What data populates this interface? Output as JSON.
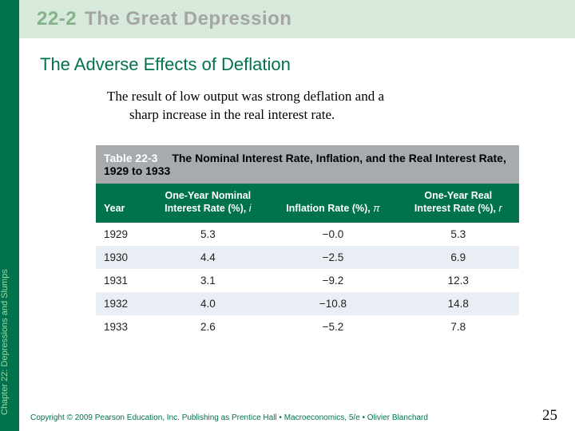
{
  "sidebar": {
    "label": "Chapter 22:  Depressions and Slumps"
  },
  "header": {
    "section_number": "22-2",
    "section_title": "The Great Depression"
  },
  "subheading": "The Adverse Effects of Deflation",
  "body": {
    "line1": "The result of low output was strong deflation and a",
    "line2": "sharp increase in the real interest rate."
  },
  "table": {
    "number": "Table 22-3",
    "title": "The Nominal Interest Rate, Inflation, and the Real Interest Rate, 1929 to 1933",
    "columns": {
      "c0": "Year",
      "c1a": "One-Year Nominal",
      "c1b": "Interest Rate (%), ",
      "c1sym": "i",
      "c2a": "Inflation Rate (%), ",
      "c2sym": "π",
      "c3a": "One-Year Real",
      "c3b": "Interest Rate (%), ",
      "c3sym": "r"
    },
    "rows": [
      {
        "year": "1929",
        "nominal": "5.3",
        "inflation": "−0.0",
        "real": "5.3"
      },
      {
        "year": "1930",
        "nominal": "4.4",
        "inflation": "−2.5",
        "real": "6.9"
      },
      {
        "year": "1931",
        "nominal": "3.1",
        "inflation": "−9.2",
        "real": "12.3"
      },
      {
        "year": "1932",
        "nominal": "4.0",
        "inflation": "−10.8",
        "real": "14.8"
      },
      {
        "year": "1933",
        "nominal": "2.6",
        "inflation": "−5.2",
        "real": "7.8"
      }
    ]
  },
  "footer": {
    "copyright": "Copyright © 2009 Pearson Education, Inc. Publishing as Prentice Hall  •  Macroeconomics, 5/e  •  Olivier Blanchard",
    "page": "25"
  },
  "colors": {
    "brand_green": "#00724d",
    "band_green": "#d6e9db",
    "sidebar_text": "#9fd9a8",
    "sec_num": "#84b38a",
    "sec_title_grey": "#a5a5a5",
    "title_row_bg": "#a7abae",
    "row_alt_bg": "#e8eef3"
  }
}
